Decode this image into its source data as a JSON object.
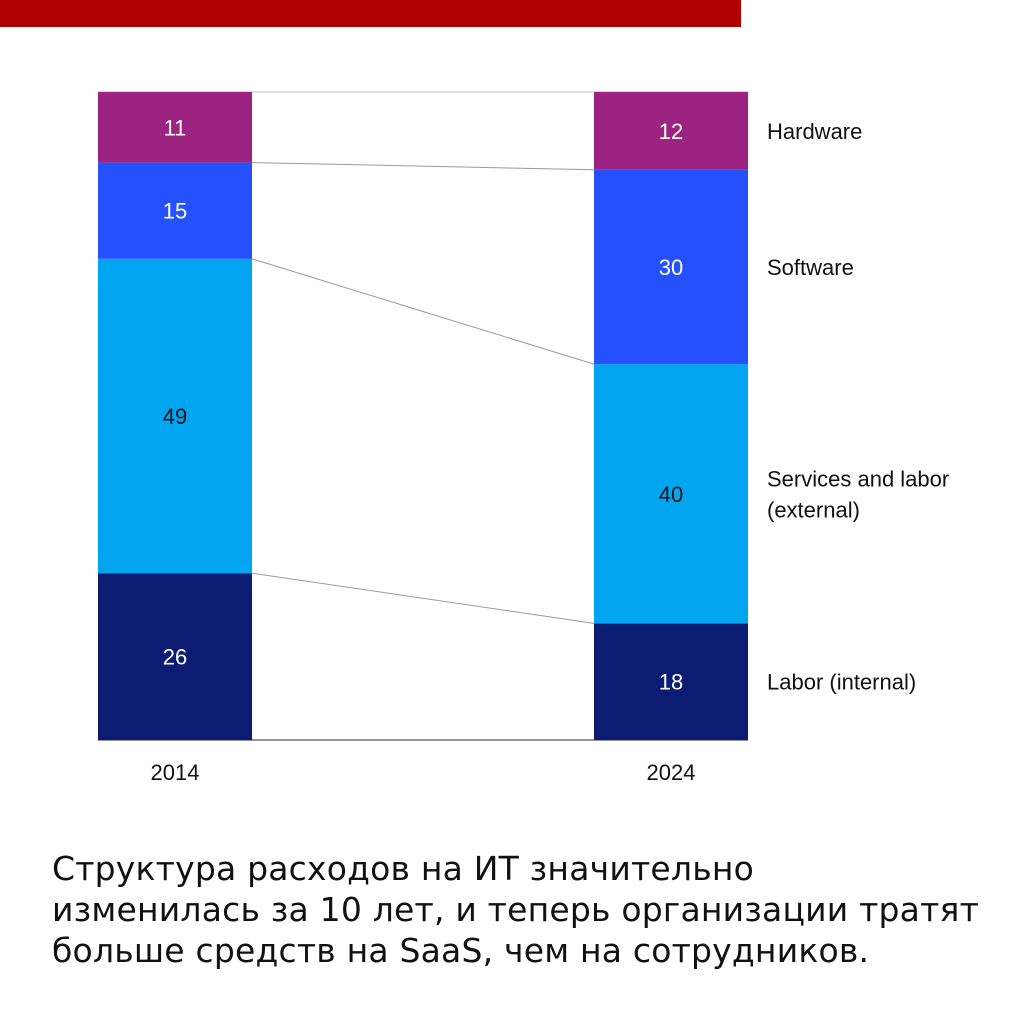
{
  "accent_color": "#b10000",
  "chart_data": {
    "type": "bar",
    "stacked": true,
    "normalized": "percent",
    "categories": [
      "2014",
      "2024"
    ],
    "series": [
      {
        "name": "Labor (internal)",
        "color": "#0c1c72",
        "values": [
          26,
          18
        ]
      },
      {
        "name": "Services and labor (external)",
        "label_lines": [
          "Services and labor",
          "(external)"
        ],
        "color": "#02a6f0",
        "values": [
          49,
          40
        ]
      },
      {
        "name": "Software",
        "color": "#2450fe",
        "values": [
          15,
          30
        ]
      },
      {
        "name": "Hardware",
        "color": "#9c2380",
        "values": [
          11,
          12
        ]
      }
    ],
    "data_labels": true,
    "connector_lines": true,
    "legend": "right, aligned to last bar"
  },
  "caption": {
    "lines": [
      "Структура расходов на ИТ значительно",
      "изменилась за 10 лет, и теперь организации тратят",
      "больше средств на SaaS, чем на сотрудников."
    ]
  }
}
